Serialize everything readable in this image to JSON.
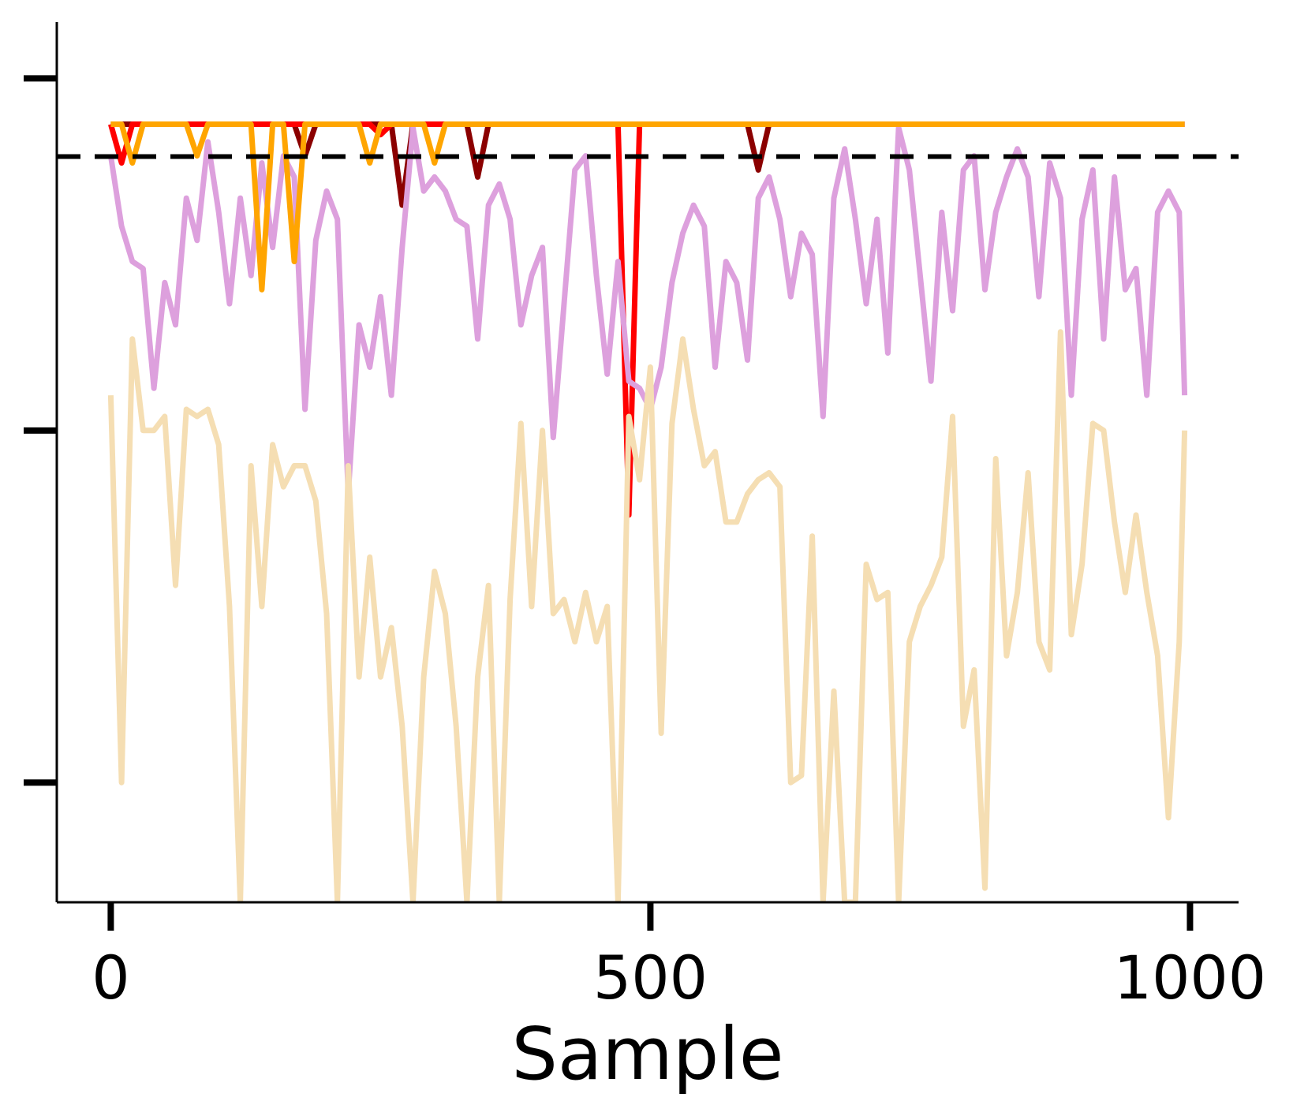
{
  "chart_data": {
    "type": "line",
    "xlabel": "Sample",
    "ylabel": "",
    "xlim": [
      -50,
      1045
    ],
    "ylim": [
      -0.17,
      1.08
    ],
    "x_ticks": [
      0,
      500,
      1000
    ],
    "x_tick_labels": [
      "0",
      "500",
      "1000"
    ],
    "y_ticks": [
      0,
      0.5,
      1.0
    ],
    "y_tick_labels": [
      "",
      "",
      ""
    ],
    "grid": false,
    "legend": "none",
    "reference_line": {
      "y": 0.889,
      "style": "dashed",
      "color": "#000000"
    },
    "series_x": [
      0,
      10,
      20,
      30,
      40,
      50,
      60,
      70,
      80,
      90,
      100,
      110,
      120,
      130,
      140,
      150,
      160,
      170,
      180,
      190,
      200,
      210,
      220,
      230,
      240,
      250,
      260,
      270,
      280,
      290,
      300,
      310,
      320,
      330,
      340,
      350,
      360,
      370,
      380,
      390,
      400,
      410,
      420,
      430,
      440,
      450,
      460,
      470,
      480,
      490,
      500,
      510,
      520,
      530,
      540,
      550,
      560,
      570,
      580,
      590,
      600,
      610,
      620,
      630,
      640,
      650,
      660,
      670,
      680,
      690,
      700,
      710,
      720,
      730,
      740,
      750,
      760,
      770,
      780,
      790,
      800,
      810,
      820,
      830,
      840,
      850,
      860,
      870,
      880,
      890,
      900,
      910,
      920,
      930,
      940,
      950,
      960,
      970,
      980,
      990,
      995
    ],
    "series": [
      {
        "color": "#8b0000",
        "values": [
          0.935,
          0.935,
          0.935,
          0.935,
          0.935,
          0.935,
          0.935,
          0.935,
          0.935,
          0.935,
          0.935,
          0.935,
          0.935,
          0.935,
          0.935,
          0.935,
          0.935,
          0.935,
          0.89,
          0.935,
          0.935,
          0.935,
          0.935,
          0.935,
          0.935,
          0.935,
          0.935,
          0.82,
          0.935,
          0.935,
          0.935,
          0.935,
          0.935,
          0.935,
          0.86,
          0.935,
          0.935,
          0.935,
          0.935,
          0.935,
          0.935,
          0.935,
          0.935,
          0.935,
          0.935,
          0.935,
          0.935,
          0.935,
          0.935,
          0.935,
          0.935,
          0.935,
          0.935,
          0.935,
          0.935,
          0.935,
          0.935,
          0.935,
          0.935,
          0.935,
          0.87,
          0.935,
          0.935,
          0.935,
          0.935,
          0.935,
          0.935,
          0.935,
          0.935,
          0.935,
          0.935,
          0.935,
          0.935,
          0.935,
          0.935,
          0.935,
          0.935,
          0.935,
          0.935,
          0.935,
          0.935,
          0.935,
          0.935,
          0.935,
          0.935,
          0.935,
          0.935,
          0.935,
          0.935,
          0.935,
          0.935,
          0.935,
          0.935,
          0.935,
          0.935,
          0.935,
          0.935,
          0.935,
          0.935,
          0.935,
          0.935
        ]
      },
      {
        "color": "#ff0000",
        "values": [
          0.935,
          0.88,
          0.935,
          0.935,
          0.935,
          0.935,
          0.935,
          0.935,
          0.935,
          0.935,
          0.935,
          0.935,
          0.935,
          0.935,
          0.935,
          0.935,
          0.935,
          0.935,
          0.935,
          0.935,
          0.935,
          0.935,
          0.935,
          0.935,
          0.935,
          0.92,
          0.935,
          0.935,
          0.935,
          0.935,
          0.935,
          0.935,
          0.935,
          0.935,
          0.935,
          0.935,
          0.935,
          0.935,
          0.935,
          0.935,
          0.935,
          0.935,
          0.935,
          0.935,
          0.935,
          0.935,
          0.935,
          0.935,
          0.38,
          0.935,
          0.935,
          0.935,
          0.935,
          0.935,
          0.935,
          0.935,
          0.935,
          0.935,
          0.935,
          0.935,
          0.935,
          0.935,
          0.935,
          0.935,
          0.935,
          0.935,
          0.935,
          0.935,
          0.935,
          0.935,
          0.935,
          0.935,
          0.935,
          0.935,
          0.935,
          0.935,
          0.935,
          0.935,
          0.935,
          0.935,
          0.935,
          0.935,
          0.935,
          0.935,
          0.935,
          0.935,
          0.935,
          0.935,
          0.935,
          0.935,
          0.935,
          0.935,
          0.935,
          0.935,
          0.935,
          0.935,
          0.935,
          0.935,
          0.935,
          0.935,
          0.935
        ]
      },
      {
        "color": "#dda0dd",
        "values": [
          0.89,
          0.79,
          0.74,
          0.73,
          0.56,
          0.71,
          0.65,
          0.83,
          0.77,
          0.91,
          0.81,
          0.68,
          0.83,
          0.72,
          0.88,
          0.76,
          0.89,
          0.86,
          0.53,
          0.77,
          0.84,
          0.8,
          0.41,
          0.65,
          0.59,
          0.69,
          0.55,
          0.76,
          0.93,
          0.84,
          0.86,
          0.84,
          0.8,
          0.79,
          0.63,
          0.82,
          0.85,
          0.8,
          0.65,
          0.72,
          0.76,
          0.49,
          0.68,
          0.87,
          0.89,
          0.72,
          0.58,
          0.74,
          0.57,
          0.56,
          0.53,
          0.59,
          0.71,
          0.78,
          0.82,
          0.79,
          0.59,
          0.74,
          0.71,
          0.6,
          0.83,
          0.86,
          0.8,
          0.69,
          0.78,
          0.75,
          0.52,
          0.83,
          0.9,
          0.8,
          0.68,
          0.8,
          0.61,
          0.93,
          0.87,
          0.72,
          0.57,
          0.81,
          0.67,
          0.87,
          0.89,
          0.7,
          0.81,
          0.86,
          0.9,
          0.86,
          0.69,
          0.88,
          0.83,
          0.55,
          0.8,
          0.87,
          0.63,
          0.86,
          0.7,
          0.73,
          0.55,
          0.81,
          0.84,
          0.81,
          0.55
        ]
      },
      {
        "color": "#f5deb3",
        "values": [
          0.55,
          -0.0,
          0.63,
          0.5,
          0.5,
          0.52,
          0.28,
          0.53,
          0.52,
          0.53,
          0.48,
          0.25,
          -0.17,
          0.45,
          0.25,
          0.48,
          0.42,
          0.45,
          0.45,
          0.4,
          0.24,
          -0.17,
          0.45,
          0.15,
          0.32,
          0.15,
          0.22,
          0.08,
          -0.17,
          0.15,
          0.3,
          0.24,
          0.08,
          -0.17,
          0.15,
          0.28,
          -0.17,
          0.26,
          0.51,
          0.25,
          0.5,
          0.24,
          0.26,
          0.2,
          0.27,
          0.2,
          0.25,
          -0.17,
          0.52,
          0.43,
          0.59,
          0.07,
          0.51,
          0.63,
          0.53,
          0.45,
          0.47,
          0.37,
          0.37,
          0.41,
          0.43,
          0.44,
          0.42,
          0.0,
          0.01,
          0.35,
          -0.17,
          0.13,
          -0.17,
          -0.17,
          0.31,
          0.26,
          0.27,
          -0.17,
          0.2,
          0.25,
          0.28,
          0.32,
          0.52,
          0.08,
          0.16,
          -0.15,
          0.46,
          0.18,
          0.27,
          0.44,
          0.2,
          0.16,
          0.64,
          0.21,
          0.31,
          0.51,
          0.5,
          0.37,
          0.27,
          0.38,
          0.27,
          0.18,
          -0.05,
          0.2,
          0.5
        ]
      },
      {
        "color": "#ffa500",
        "values": [
          0.935,
          0.935,
          0.88,
          0.935,
          0.935,
          0.935,
          0.935,
          0.935,
          0.89,
          0.935,
          0.935,
          0.935,
          0.935,
          0.935,
          0.7,
          0.935,
          0.935,
          0.74,
          0.935,
          0.935,
          0.935,
          0.935,
          0.935,
          0.935,
          0.88,
          0.935,
          0.935,
          0.935,
          0.935,
          0.935,
          0.88,
          0.935,
          0.935,
          0.935,
          0.935,
          0.935,
          0.935,
          0.935,
          0.935,
          0.935,
          0.935,
          0.935,
          0.935,
          0.935,
          0.935,
          0.935,
          0.935,
          0.935,
          0.935,
          0.935,
          0.935,
          0.935,
          0.935,
          0.935,
          0.935,
          0.935,
          0.935,
          0.935,
          0.935,
          0.935,
          0.935,
          0.935,
          0.935,
          0.935,
          0.935,
          0.935,
          0.935,
          0.935,
          0.935,
          0.935,
          0.935,
          0.935,
          0.935,
          0.935,
          0.935,
          0.935,
          0.935,
          0.935,
          0.935,
          0.935,
          0.935,
          0.935,
          0.935,
          0.935,
          0.935,
          0.935,
          0.935,
          0.935,
          0.935,
          0.935,
          0.935,
          0.935,
          0.935,
          0.935,
          0.935,
          0.935,
          0.935,
          0.935,
          0.935,
          0.935,
          0.935
        ]
      }
    ]
  }
}
